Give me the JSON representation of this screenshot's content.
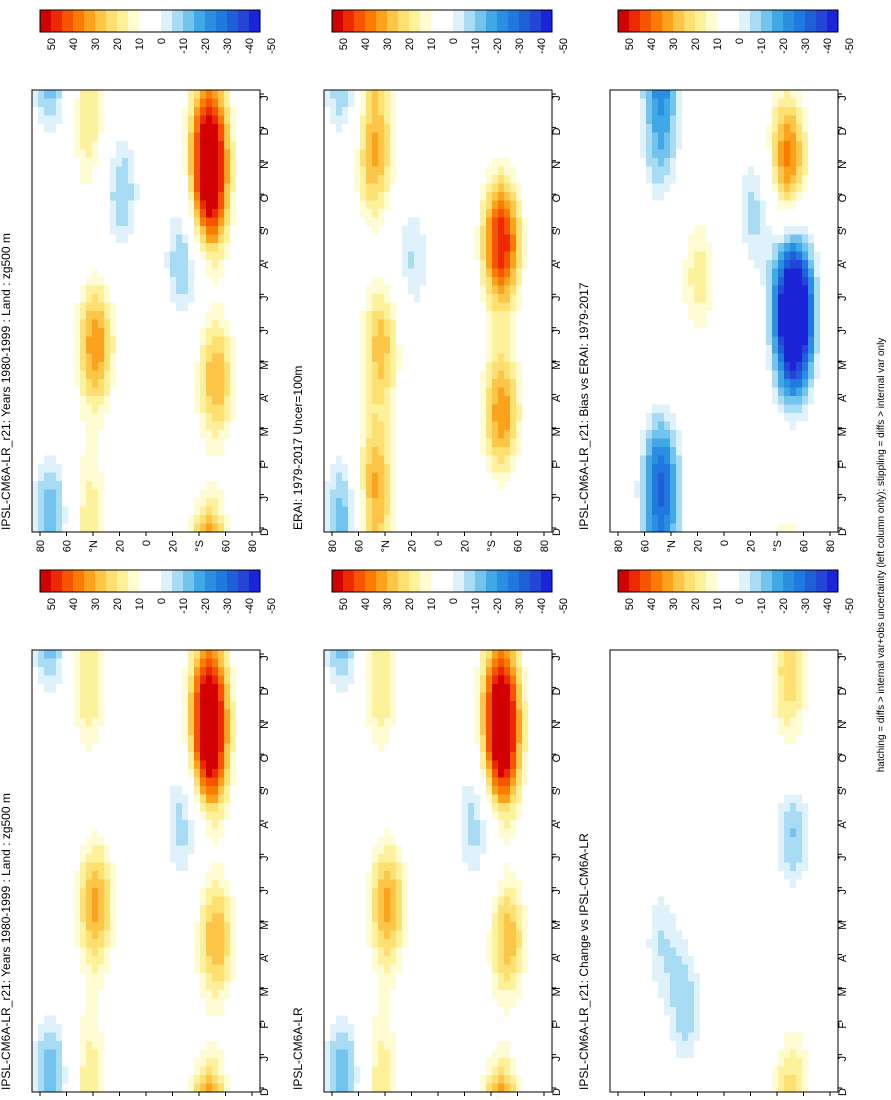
{
  "footnote": "hatching = diffs > internal var+obs uncertainty (left column only); stippling = diffs > internal var only",
  "colorbar": {
    "ticks": [
      "50",
      "40",
      "30",
      "20",
      "10",
      "0",
      "-10",
      "-20",
      "-30",
      "-40",
      "-50"
    ],
    "colors": [
      "#d20000",
      "#ec2a00",
      "#f75400",
      "#fb7c00",
      "#fca21c",
      "#fdc648",
      "#fde072",
      "#fef19c",
      "#fffbd2",
      "#ffffff",
      "#ffffff",
      "#dff2fb",
      "#a8dcf4",
      "#72c3ee",
      "#40a8e6",
      "#2a8fe0",
      "#2178de",
      "#1f5fd8",
      "#2544d8",
      "#1c24d8"
    ]
  },
  "chart_data": [
    {
      "type": "heatmap",
      "title": "IPSL-CM6A-LR_r21: Years 1980-1999 : Land : zg500 m",
      "x_ticks": [
        "D",
        "J",
        "F",
        "M",
        "A",
        "M",
        "J",
        "J",
        "A",
        "S",
        "O",
        "N",
        "D",
        "J"
      ],
      "y_ticks": [
        "80",
        "60",
        "°N",
        "20",
        "0",
        "20",
        "°S",
        "60",
        "80"
      ],
      "y_range": [
        -90,
        90
      ],
      "colorbar_range": [
        -55,
        55
      ],
      "features": [
        {
          "month": 5.5,
          "lat": 40,
          "amplitude": 34
        },
        {
          "month": 1.0,
          "lat": 45,
          "amplitude": 14
        },
        {
          "month": 11.5,
          "lat": 45,
          "amplitude": 16
        },
        {
          "month": 10.0,
          "lat": -50,
          "amplitude": 52
        },
        {
          "month": 12.0,
          "lat": -50,
          "amplitude": 36
        },
        {
          "month": 4.5,
          "lat": -55,
          "amplitude": 30
        },
        {
          "month": 8.0,
          "lat": -30,
          "amplitude": -22
        },
        {
          "month": 0.5,
          "lat": 75,
          "amplitude": -24
        },
        {
          "month": 10.0,
          "lat": 20,
          "amplitude": -20
        }
      ]
    },
    {
      "type": "heatmap",
      "title": "IPSL-CM6A-LR_r21: Years 1980-1999 : Land : zg500 m",
      "x_ticks": [
        "D",
        "J",
        "F",
        "M",
        "A",
        "M",
        "J",
        "J",
        "A",
        "S",
        "O",
        "N",
        "D",
        "J"
      ],
      "y_ticks": [
        "80",
        "60",
        "°N",
        "20",
        "0",
        "20",
        "°S",
        "60",
        "80"
      ],
      "y_range": [
        -90,
        90
      ],
      "colorbar_range": [
        -55,
        55
      ],
      "features": [
        {
          "month": 5.5,
          "lat": 40,
          "amplitude": 32
        },
        {
          "month": 1.0,
          "lat": 45,
          "amplitude": 14
        },
        {
          "month": 11.5,
          "lat": 45,
          "amplitude": 16
        },
        {
          "month": 10.0,
          "lat": -50,
          "amplitude": 52
        },
        {
          "month": 12.0,
          "lat": -50,
          "amplitude": 36
        },
        {
          "month": 4.5,
          "lat": -55,
          "amplitude": 30
        },
        {
          "month": 8.0,
          "lat": -30,
          "amplitude": -20
        },
        {
          "month": 0.5,
          "lat": 75,
          "amplitude": -24
        }
      ]
    },
    {
      "type": "heatmap",
      "title": "ERAI: 1979-2017 Uncer=100m",
      "x_ticks": [
        "D",
        "J",
        "F",
        "M",
        "A",
        "M",
        "J",
        "J",
        "A",
        "S",
        "O",
        "N",
        "D",
        "J"
      ],
      "y_ticks": [
        "80",
        "60",
        "°N",
        "20",
        "0",
        "20",
        "°S",
        "60",
        "80"
      ],
      "y_range": [
        -90,
        90
      ],
      "colorbar_range": [
        -55,
        55
      ],
      "features": [
        {
          "month": 1.5,
          "lat": 50,
          "amplitude": 30
        },
        {
          "month": 5.5,
          "lat": 45,
          "amplitude": 28
        },
        {
          "month": 11.0,
          "lat": 50,
          "amplitude": 30
        },
        {
          "month": 8.5,
          "lat": -50,
          "amplitude": 50
        },
        {
          "month": 3.5,
          "lat": -50,
          "amplitude": 34
        },
        {
          "month": 0.5,
          "lat": 75,
          "amplitude": -24
        },
        {
          "month": 8.0,
          "lat": 20,
          "amplitude": -16
        }
      ]
    },
    {
      "type": "heatmap",
      "title": "IPSL-CM6A-LR",
      "x_ticks": [
        "D",
        "J",
        "F",
        "M",
        "A",
        "M",
        "J",
        "J",
        "A",
        "S",
        "O",
        "N",
        "D",
        "J"
      ],
      "y_ticks": [
        "80",
        "60",
        "°N",
        "20",
        "0",
        "20",
        "°S",
        "60",
        "80"
      ],
      "y_range": [
        -90,
        90
      ],
      "colorbar_range": [
        -55,
        55
      ],
      "features": [
        {
          "month": 5.5,
          "lat": 40,
          "amplitude": 32
        },
        {
          "month": 1.0,
          "lat": 45,
          "amplitude": 14
        },
        {
          "month": 11.5,
          "lat": 45,
          "amplitude": 16
        },
        {
          "month": 10.0,
          "lat": -50,
          "amplitude": 52
        },
        {
          "month": 12.0,
          "lat": -50,
          "amplitude": 36
        },
        {
          "month": 4.5,
          "lat": -55,
          "amplitude": 28
        },
        {
          "month": 8.0,
          "lat": -30,
          "amplitude": -20
        },
        {
          "month": 0.5,
          "lat": 75,
          "amplitude": -24
        }
      ]
    },
    {
      "type": "heatmap",
      "title": "IPSL-CM6A-LR_r21: Bias vs ERAI: 1979-2017",
      "x_ticks": [
        "D",
        "J",
        "F",
        "M",
        "A",
        "M",
        "J",
        "J",
        "A",
        "S",
        "O",
        "N",
        "D",
        "J"
      ],
      "y_ticks": [
        "80",
        "60",
        "°N",
        "20",
        "0",
        "20",
        "°S",
        "60",
        "80"
      ],
      "y_range": [
        -90,
        90
      ],
      "colorbar_range": [
        -55,
        55
      ],
      "features": [
        {
          "month": 1.5,
          "lat": 50,
          "amplitude": -40
        },
        {
          "month": 11.5,
          "lat": 50,
          "amplitude": -22
        },
        {
          "month": 7.0,
          "lat": -55,
          "amplitude": -52
        },
        {
          "month": 5.5,
          "lat": -55,
          "amplitude": -40
        },
        {
          "month": 11.0,
          "lat": -50,
          "amplitude": 38
        },
        {
          "month": 7.5,
          "lat": 20,
          "amplitude": 18
        },
        {
          "month": 9.5,
          "lat": -25,
          "amplitude": -18
        }
      ]
    },
    {
      "type": "heatmap",
      "title": "IPSL-CM6A-LR_r21: Change vs IPSL-CM6A-LR",
      "x_ticks": [
        "D",
        "J",
        "F",
        "M",
        "A",
        "M",
        "J",
        "J",
        "A",
        "S",
        "O",
        "N",
        "D",
        "J"
      ],
      "y_ticks": [
        "80",
        "60",
        "°N",
        "20",
        "0",
        "20",
        "°S",
        "60",
        "80"
      ],
      "y_range": [
        -90,
        90
      ],
      "colorbar_range": [
        -55,
        55
      ],
      "features": [
        {
          "month": 2.5,
          "lat": 30,
          "amplitude": -18
        },
        {
          "month": 8.0,
          "lat": -55,
          "amplitude": -30
        },
        {
          "month": 12.0,
          "lat": -50,
          "amplitude": 16
        },
        {
          "month": 9.0,
          "lat": -55,
          "amplitude": 14
        },
        {
          "month": 4.5,
          "lat": 50,
          "amplitude": -14
        },
        {
          "month": 0.5,
          "lat": -55,
          "amplitude": 12
        }
      ]
    }
  ]
}
